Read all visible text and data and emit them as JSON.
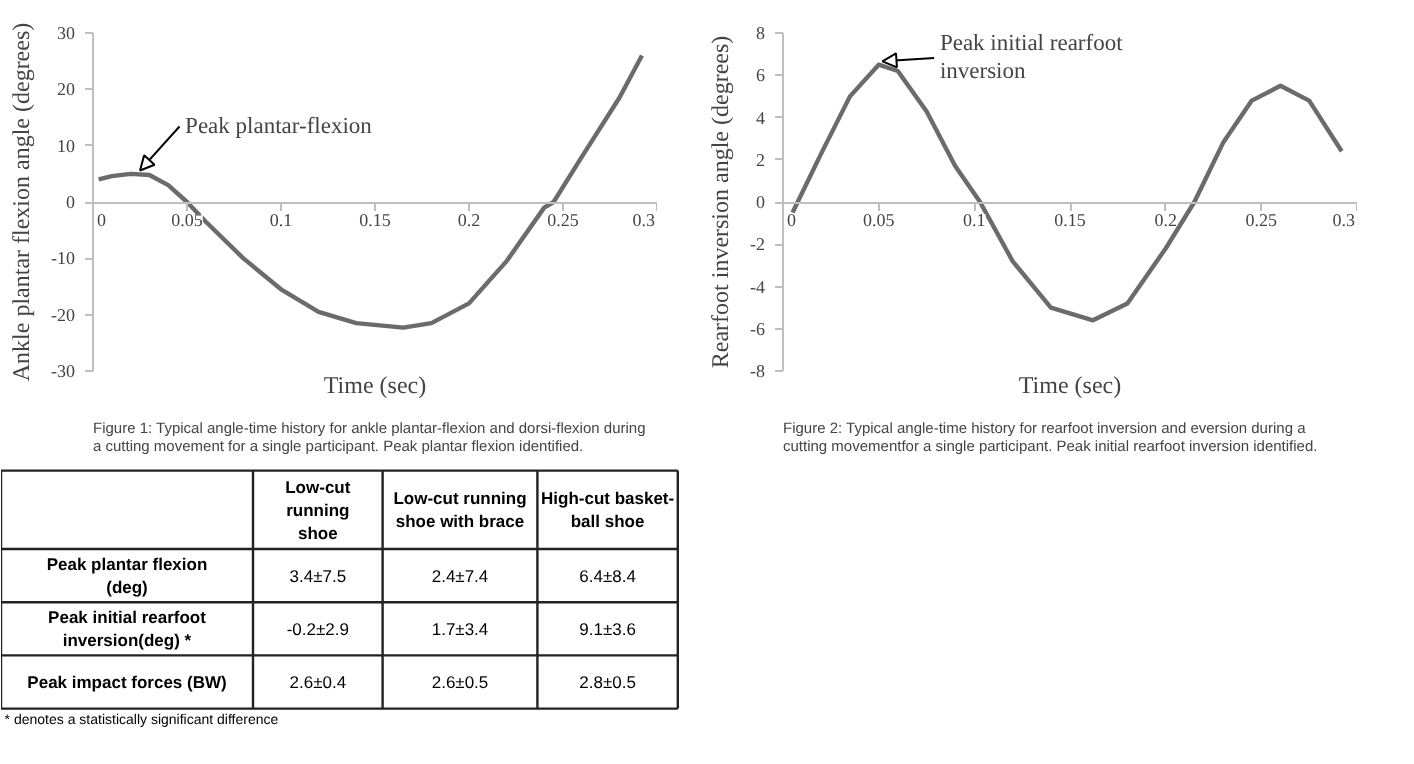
{
  "chart_data": [
    {
      "type": "line",
      "xlabel": "Time (sec)",
      "ylabel": "Ankle plantar flexion angle (degrees)",
      "xlim": [
        0,
        0.3
      ],
      "ylim": [
        -30,
        30
      ],
      "xticks": [
        0,
        0.05,
        0.1,
        0.15,
        0.2,
        0.25,
        0.3
      ],
      "yticks": [
        -30,
        -20,
        -10,
        0,
        10,
        20,
        30
      ],
      "grid": false,
      "series": [
        {
          "color": "#6b6b6b",
          "x": [
            0.003,
            0.01,
            0.02,
            0.03,
            0.04,
            0.05,
            0.06,
            0.08,
            0.1,
            0.12,
            0.14,
            0.165,
            0.18,
            0.2,
            0.22,
            0.24,
            0.245,
            0.26,
            0.28,
            0.292
          ],
          "values": [
            4,
            4.6,
            5,
            4.8,
            3,
            0,
            -3.5,
            -10,
            -15.5,
            -19.5,
            -21.5,
            -22.3,
            -21.5,
            -18,
            -10.5,
            -1,
            0,
            8,
            18.5,
            26
          ]
        }
      ],
      "annotations": [
        {
          "text": "Peak plantar-flexion",
          "x": 0.025,
          "y": 5
        },
        "Figure 1: Typical angle-time history for ankle plantar-flexion and dorsi-flexion during a cutting movement for a single participant. Peak plantar flexion identified."
      ]
    },
    {
      "type": "line",
      "xlabel": "Time (sec)",
      "ylabel": "Rearfoot inversion angle (degrees)",
      "xlim": [
        0,
        0.3
      ],
      "ylim": [
        -8,
        8
      ],
      "xticks": [
        0,
        0.05,
        0.1,
        0.15,
        0.2,
        0.25,
        0.3
      ],
      "yticks": [
        -8,
        -6,
        -4,
        -2,
        0,
        2,
        4,
        6,
        8
      ],
      "grid": false,
      "series": [
        {
          "color": "#6b6b6b",
          "x": [
            0.005,
            0.02,
            0.035,
            0.05,
            0.06,
            0.075,
            0.09,
            0.103,
            0.12,
            0.14,
            0.162,
            0.18,
            0.2,
            0.215,
            0.23,
            0.245,
            0.26,
            0.275,
            0.292
          ],
          "values": [
            -0.5,
            2.3,
            5,
            6.5,
            6.2,
            4.3,
            1.7,
            0,
            -2.8,
            -5,
            -5.6,
            -4.8,
            -2.2,
            0,
            2.8,
            4.8,
            5.5,
            4.8,
            2.4
          ]
        }
      ],
      "annotations": [
        {
          "text": "Peak initial rearfoot\ninversion",
          "x": 0.052,
          "y": 6.5
        },
        "Figure 2: Typical angle-time history for rearfoot inversion and eversion during a cutting movementfor a single participant. Peak initial rearfoot inversion identified."
      ]
    },
    {
      "type": "other",
      "annotations": [
        "Low-cut\nrunning\nshoe",
        "Low-cut running\nshoe with brace",
        "High-cut basket-\nball shoe",
        "Peak plantar flexion\n(deg)",
        "3.4±7.5",
        "2.4±7.4",
        "6.4±8.4",
        "Peak initial rearfoot\ninversion(deg) *",
        "-0.2±2.9",
        "1.7±3.4",
        "9.1±3.6",
        "Peak impact forces (BW)",
        "2.6±0.4",
        "2.6±0.5",
        "2.8±0.5",
        "* denotes a statistically significant difference"
      ]
    }
  ]
}
